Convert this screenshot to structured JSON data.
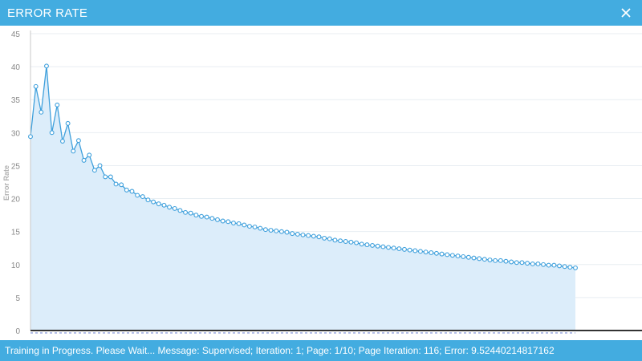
{
  "window": {
    "title": "ERROR RATE",
    "close_icon": "close-icon"
  },
  "status": {
    "text": "Training in Progress. Please Wait...  Message: Supervised; Iteration: 1; Page: 1/10; Page Iteration: 116; Error: 9.52440214817162"
  },
  "colors": {
    "accent": "#43ace0",
    "line": "#3fa0dc",
    "fill": "#dcedfa",
    "grid": "#e8eef2",
    "axis_text": "#8a8a8a"
  },
  "chart_data": {
    "type": "area",
    "title": "",
    "xlabel": "",
    "ylabel": "Error Rate",
    "ylim": [
      0,
      45
    ],
    "yticks": [
      0,
      5,
      10,
      15,
      20,
      25,
      30,
      35,
      40,
      45
    ],
    "grid": true,
    "series": [
      {
        "x": [
          1,
          2,
          3,
          4,
          5,
          6,
          7,
          8,
          9,
          10,
          11,
          12,
          13,
          14,
          15,
          16,
          17,
          18,
          19,
          20,
          21,
          22,
          23,
          24,
          25,
          26,
          27,
          28,
          29,
          30,
          31,
          32,
          33,
          34,
          35,
          36,
          37,
          38,
          39,
          40,
          41,
          42,
          43,
          44,
          45,
          46,
          47,
          48,
          49,
          50,
          51,
          52,
          53,
          54,
          55,
          56,
          57,
          58,
          59,
          60,
          61,
          62,
          63,
          64,
          65,
          66,
          67,
          68,
          69,
          70,
          71,
          72,
          73,
          74,
          75,
          76,
          77,
          78,
          79,
          80,
          81,
          82,
          83,
          84,
          85,
          86,
          87,
          88,
          89,
          90,
          91,
          92,
          93,
          94,
          95,
          96,
          97,
          98,
          99,
          100,
          101,
          102,
          103
        ],
        "values": [
          29.4,
          37.0,
          33.1,
          40.1,
          30.0,
          34.2,
          28.7,
          31.4,
          27.2,
          28.8,
          25.8,
          26.6,
          24.3,
          25.0,
          23.3,
          23.3,
          22.2,
          22.1,
          21.3,
          21.1,
          20.5,
          20.3,
          19.8,
          19.5,
          19.2,
          19.0,
          18.7,
          18.5,
          18.2,
          17.9,
          17.8,
          17.5,
          17.3,
          17.2,
          17.0,
          16.8,
          16.6,
          16.5,
          16.3,
          16.2,
          16.0,
          15.8,
          15.7,
          15.5,
          15.3,
          15.2,
          15.1,
          15.0,
          14.9,
          14.7,
          14.6,
          14.5,
          14.4,
          14.3,
          14.2,
          14.0,
          13.9,
          13.7,
          13.6,
          13.5,
          13.4,
          13.3,
          13.1,
          13.0,
          12.9,
          12.8,
          12.7,
          12.6,
          12.5,
          12.4,
          12.3,
          12.2,
          12.1,
          12.0,
          11.9,
          11.8,
          11.7,
          11.6,
          11.5,
          11.4,
          11.3,
          11.2,
          11.1,
          11.0,
          10.9,
          10.8,
          10.7,
          10.6,
          10.6,
          10.5,
          10.4,
          10.3,
          10.3,
          10.2,
          10.1,
          10.1,
          10.0,
          9.9,
          9.9,
          9.8,
          9.7,
          9.6,
          9.5
        ]
      }
    ]
  }
}
